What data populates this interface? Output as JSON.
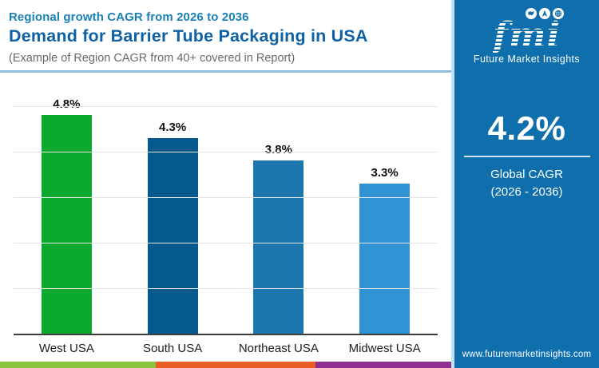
{
  "header": {
    "subtitle": "Regional growth CAGR from 2026 to 2036",
    "title": "Demand for Barrier Tube Packaging in USA",
    "note": "(Example of Region CAGR from 40+ covered in Report)"
  },
  "chart_data": {
    "type": "bar",
    "categories": [
      "West USA",
      "South USA",
      "Northeast USA",
      "Midwest USA"
    ],
    "values": [
      4.8,
      4.3,
      3.8,
      3.3
    ],
    "value_labels": [
      "4.8%",
      "4.3%",
      "3.8%",
      "3.3%"
    ],
    "bar_colors": [
      "#0aa82d",
      "#04598f",
      "#1d76ae",
      "#3094d4"
    ],
    "title": "Demand for Barrier Tube Packaging in USA",
    "xlabel": "",
    "ylabel": "",
    "ylim": [
      0,
      5.5
    ],
    "gridline_values": [
      1,
      2,
      3,
      4,
      5
    ],
    "grid": true,
    "legend": "none"
  },
  "sidebar": {
    "background_color": "#0f6fac",
    "logo": {
      "text": "fmi",
      "tagline": "Future Market Insights",
      "icons": [
        "map-icon",
        "compass-icon",
        "globe-icon"
      ]
    },
    "global_cagr": {
      "value": "4.2%",
      "label_line1": "Global CAGR",
      "label_line2": "(2026 - 2036)"
    },
    "website": "www.futuremarketinsights.com"
  },
  "footer_stripe": {
    "colors": [
      "#8cc43d",
      "#ea5d26",
      "#8f2f8f"
    ]
  }
}
